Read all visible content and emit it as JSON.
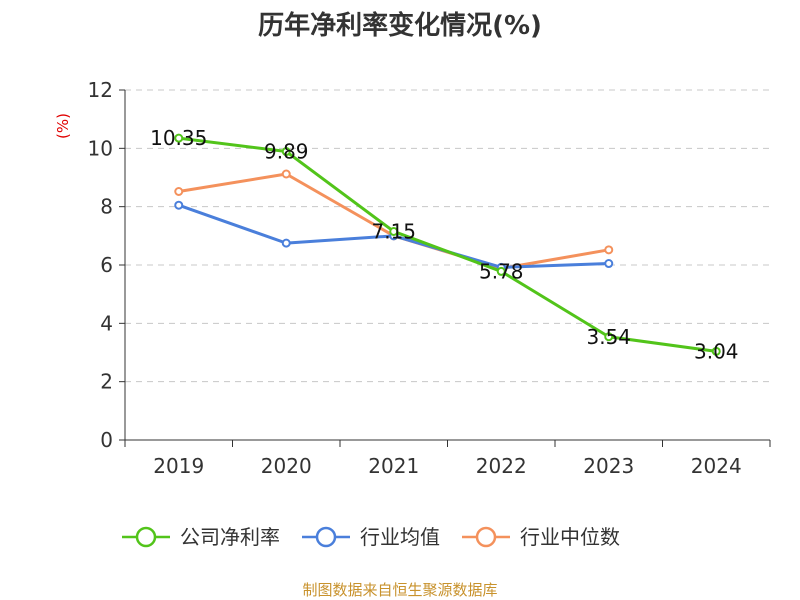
{
  "chart_data": {
    "type": "line",
    "title": "历年净利率变化情况(%)",
    "ylabel": "(%)",
    "xlabel": "",
    "categories": [
      "2019",
      "2020",
      "2021",
      "2022",
      "2023",
      "2024"
    ],
    "ylim": [
      0,
      12
    ],
    "yticks": [
      0,
      2,
      4,
      6,
      8,
      10,
      12
    ],
    "grid": true,
    "legend_position": "bottom",
    "series": [
      {
        "name": "公司净利率",
        "color": "#52c41a",
        "values": [
          10.35,
          9.89,
          7.15,
          5.78,
          3.54,
          3.04
        ],
        "labels": [
          "10.35",
          "9.89",
          "7.15",
          "5.78",
          "3.54",
          "3.04"
        ]
      },
      {
        "name": "行业均值",
        "color": "#4a7fdb",
        "values": [
          8.05,
          6.75,
          7.0,
          5.92,
          6.05,
          null
        ]
      },
      {
        "name": "行业中位数",
        "color": "#f4915c",
        "values": [
          8.52,
          9.12,
          7.0,
          5.88,
          6.52,
          null
        ]
      }
    ]
  },
  "source": "制图数据来自恒生聚源数据库"
}
